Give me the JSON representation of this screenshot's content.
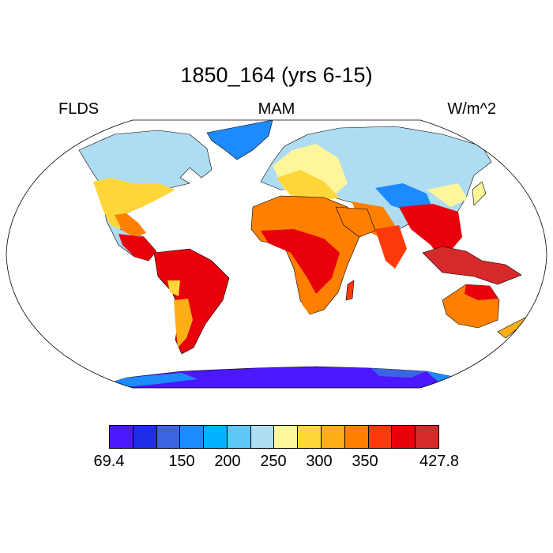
{
  "title": "1850_164 (yrs 6-15)",
  "left_label": "FLDS",
  "center_label": "MAM",
  "right_label": "W/m^2",
  "colorbar": {
    "colors": [
      "#4b18ff",
      "#1f2ee6",
      "#3a64e0",
      "#1e8aff",
      "#00b2ff",
      "#5ec7f5",
      "#aedcf2",
      "#fff59a",
      "#ffd738",
      "#ffae15",
      "#ff7f00",
      "#ff3a0a",
      "#e8000b",
      "#d62a2a"
    ],
    "labels": [
      "69.4",
      "150",
      "200",
      "250",
      "300",
      "350",
      "427.8"
    ]
  }
}
